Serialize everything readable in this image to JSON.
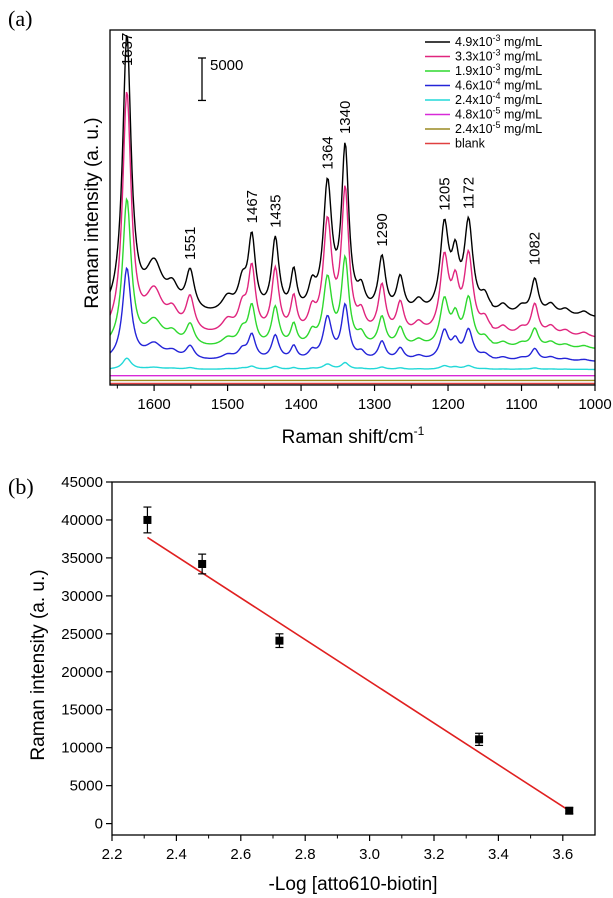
{
  "panels": {
    "a": {
      "letter": "(a)"
    },
    "b": {
      "letter": "(b)"
    }
  },
  "chart_data": [
    {
      "type": "line",
      "xlabel_main": "Raman shift/cm",
      "xlabel_sup": "-1",
      "ylabel": "Raman intensity (a. u.)",
      "xlim": [
        1660,
        1000
      ],
      "x_reversed": true,
      "x_ticks": [
        1600,
        1500,
        1400,
        1300,
        1200,
        1100,
        1000
      ],
      "y_tick_labels": false,
      "scale_bar": {
        "label": "5000",
        "value": 5000
      },
      "peaks": [
        {
          "x": 1637,
          "label": "1637"
        },
        {
          "x": 1551,
          "label": "1551"
        },
        {
          "x": 1467,
          "label": "1467"
        },
        {
          "x": 1435,
          "label": "1435"
        },
        {
          "x": 1364,
          "label": "1364"
        },
        {
          "x": 1340,
          "label": "1340"
        },
        {
          "x": 1290,
          "label": "1290"
        },
        {
          "x": 1205,
          "label": "1205"
        },
        {
          "x": 1172,
          "label": "1172"
        },
        {
          "x": 1082,
          "label": "1082"
        }
      ],
      "legend_position": "top-right",
      "series": [
        {
          "name": "4.9x10-3 mg/mL",
          "mantissa": "4.9",
          "exp": "-3",
          "unit": " mg/mL",
          "color": "#000000",
          "scale": 1.0,
          "baseline": 4300
        },
        {
          "name": "3.3x10-3 mg/mL",
          "mantissa": "3.3",
          "exp": "-3",
          "unit": " mg/mL",
          "color": "#e0257e",
          "scale": 0.87,
          "baseline": 3000
        },
        {
          "name": "1.9x10-3 mg/mL",
          "mantissa": "1.9",
          "exp": "-3",
          "unit": " mg/mL",
          "color": "#2ed82e",
          "scale": 0.53,
          "baseline": 2300
        },
        {
          "name": "4.6x10-4 mg/mL",
          "mantissa": "4.6",
          "exp": "-4",
          "unit": " mg/mL",
          "color": "#2424d8",
          "scale": 0.33,
          "baseline": 1500
        },
        {
          "name": "2.4x10-4 mg/mL",
          "mantissa": "2.4",
          "exp": "-4",
          "unit": " mg/mL",
          "color": "#22d8d8",
          "scale": 0.04,
          "baseline": 1000
        },
        {
          "name": "4.8x10-5 mg/mL",
          "mantissa": "4.8",
          "exp": "-5",
          "unit": " mg/mL",
          "color": "#d82ad8",
          "scale": 0.0,
          "baseline": 600
        },
        {
          "name": "2.4x10-5 mg/mL",
          "mantissa": "2.4",
          "exp": "-5",
          "unit": " mg/mL",
          "color": "#9a8a22",
          "scale": 0.0,
          "baseline": 300
        },
        {
          "name": "blank",
          "mantissa": "blank",
          "exp": "",
          "unit": "",
          "color": "#e04040",
          "scale": 0.0,
          "baseline": 100
        }
      ],
      "reference_bands": [
        {
          "center": 1637,
          "height": 18000,
          "width": 7
        },
        {
          "center": 1600,
          "height": 3000,
          "width": 14
        },
        {
          "center": 1575,
          "height": 1400,
          "width": 10
        },
        {
          "center": 1551,
          "height": 2600,
          "width": 7
        },
        {
          "center": 1500,
          "height": 1000,
          "width": 10
        },
        {
          "center": 1480,
          "height": 1800,
          "width": 7
        },
        {
          "center": 1467,
          "height": 4800,
          "width": 6
        },
        {
          "center": 1435,
          "height": 4800,
          "width": 6
        },
        {
          "center": 1410,
          "height": 2600,
          "width": 5
        },
        {
          "center": 1385,
          "height": 1500,
          "width": 6
        },
        {
          "center": 1364,
          "height": 8200,
          "width": 7
        },
        {
          "center": 1340,
          "height": 10500,
          "width": 6
        },
        {
          "center": 1318,
          "height": 1300,
          "width": 6
        },
        {
          "center": 1290,
          "height": 3600,
          "width": 6
        },
        {
          "center": 1265,
          "height": 2300,
          "width": 6
        },
        {
          "center": 1240,
          "height": 800,
          "width": 8
        },
        {
          "center": 1205,
          "height": 5600,
          "width": 7
        },
        {
          "center": 1190,
          "height": 3200,
          "width": 6
        },
        {
          "center": 1172,
          "height": 5800,
          "width": 7
        },
        {
          "center": 1150,
          "height": 1000,
          "width": 7
        },
        {
          "center": 1125,
          "height": 700,
          "width": 8
        },
        {
          "center": 1100,
          "height": 600,
          "width": 8
        },
        {
          "center": 1082,
          "height": 2600,
          "width": 6
        },
        {
          "center": 1060,
          "height": 800,
          "width": 8
        },
        {
          "center": 1040,
          "height": 500,
          "width": 8
        },
        {
          "center": 1015,
          "height": 400,
          "width": 8
        }
      ],
      "ylim": [
        0,
        23000
      ]
    },
    {
      "type": "scatter",
      "xlabel": "-Log [atto610-biotin]",
      "ylabel": "Raman intensity (a. u.)",
      "xlim": [
        2.2,
        3.7
      ],
      "ylim": [
        -1500,
        45000
      ],
      "x_ticks": [
        "2.2",
        "2.4",
        "2.6",
        "2.8",
        "3.0",
        "3.2",
        "3.4",
        "3.6"
      ],
      "y_ticks": [
        "0",
        "5000",
        "10000",
        "15000",
        "20000",
        "25000",
        "30000",
        "35000",
        "40000",
        "45000"
      ],
      "points": [
        {
          "x": 2.31,
          "y": 40000,
          "err": 1700
        },
        {
          "x": 2.48,
          "y": 34200,
          "err": 1300
        },
        {
          "x": 2.72,
          "y": 24100,
          "err": 900
        },
        {
          "x": 3.34,
          "y": 11100,
          "err": 800
        },
        {
          "x": 3.62,
          "y": 1700,
          "err": 400
        }
      ],
      "fit_line": {
        "x": [
          2.31,
          3.62
        ],
        "y": [
          37700,
          1700
        ],
        "color": "#e02020"
      },
      "marker_color": "#000000"
    }
  ]
}
